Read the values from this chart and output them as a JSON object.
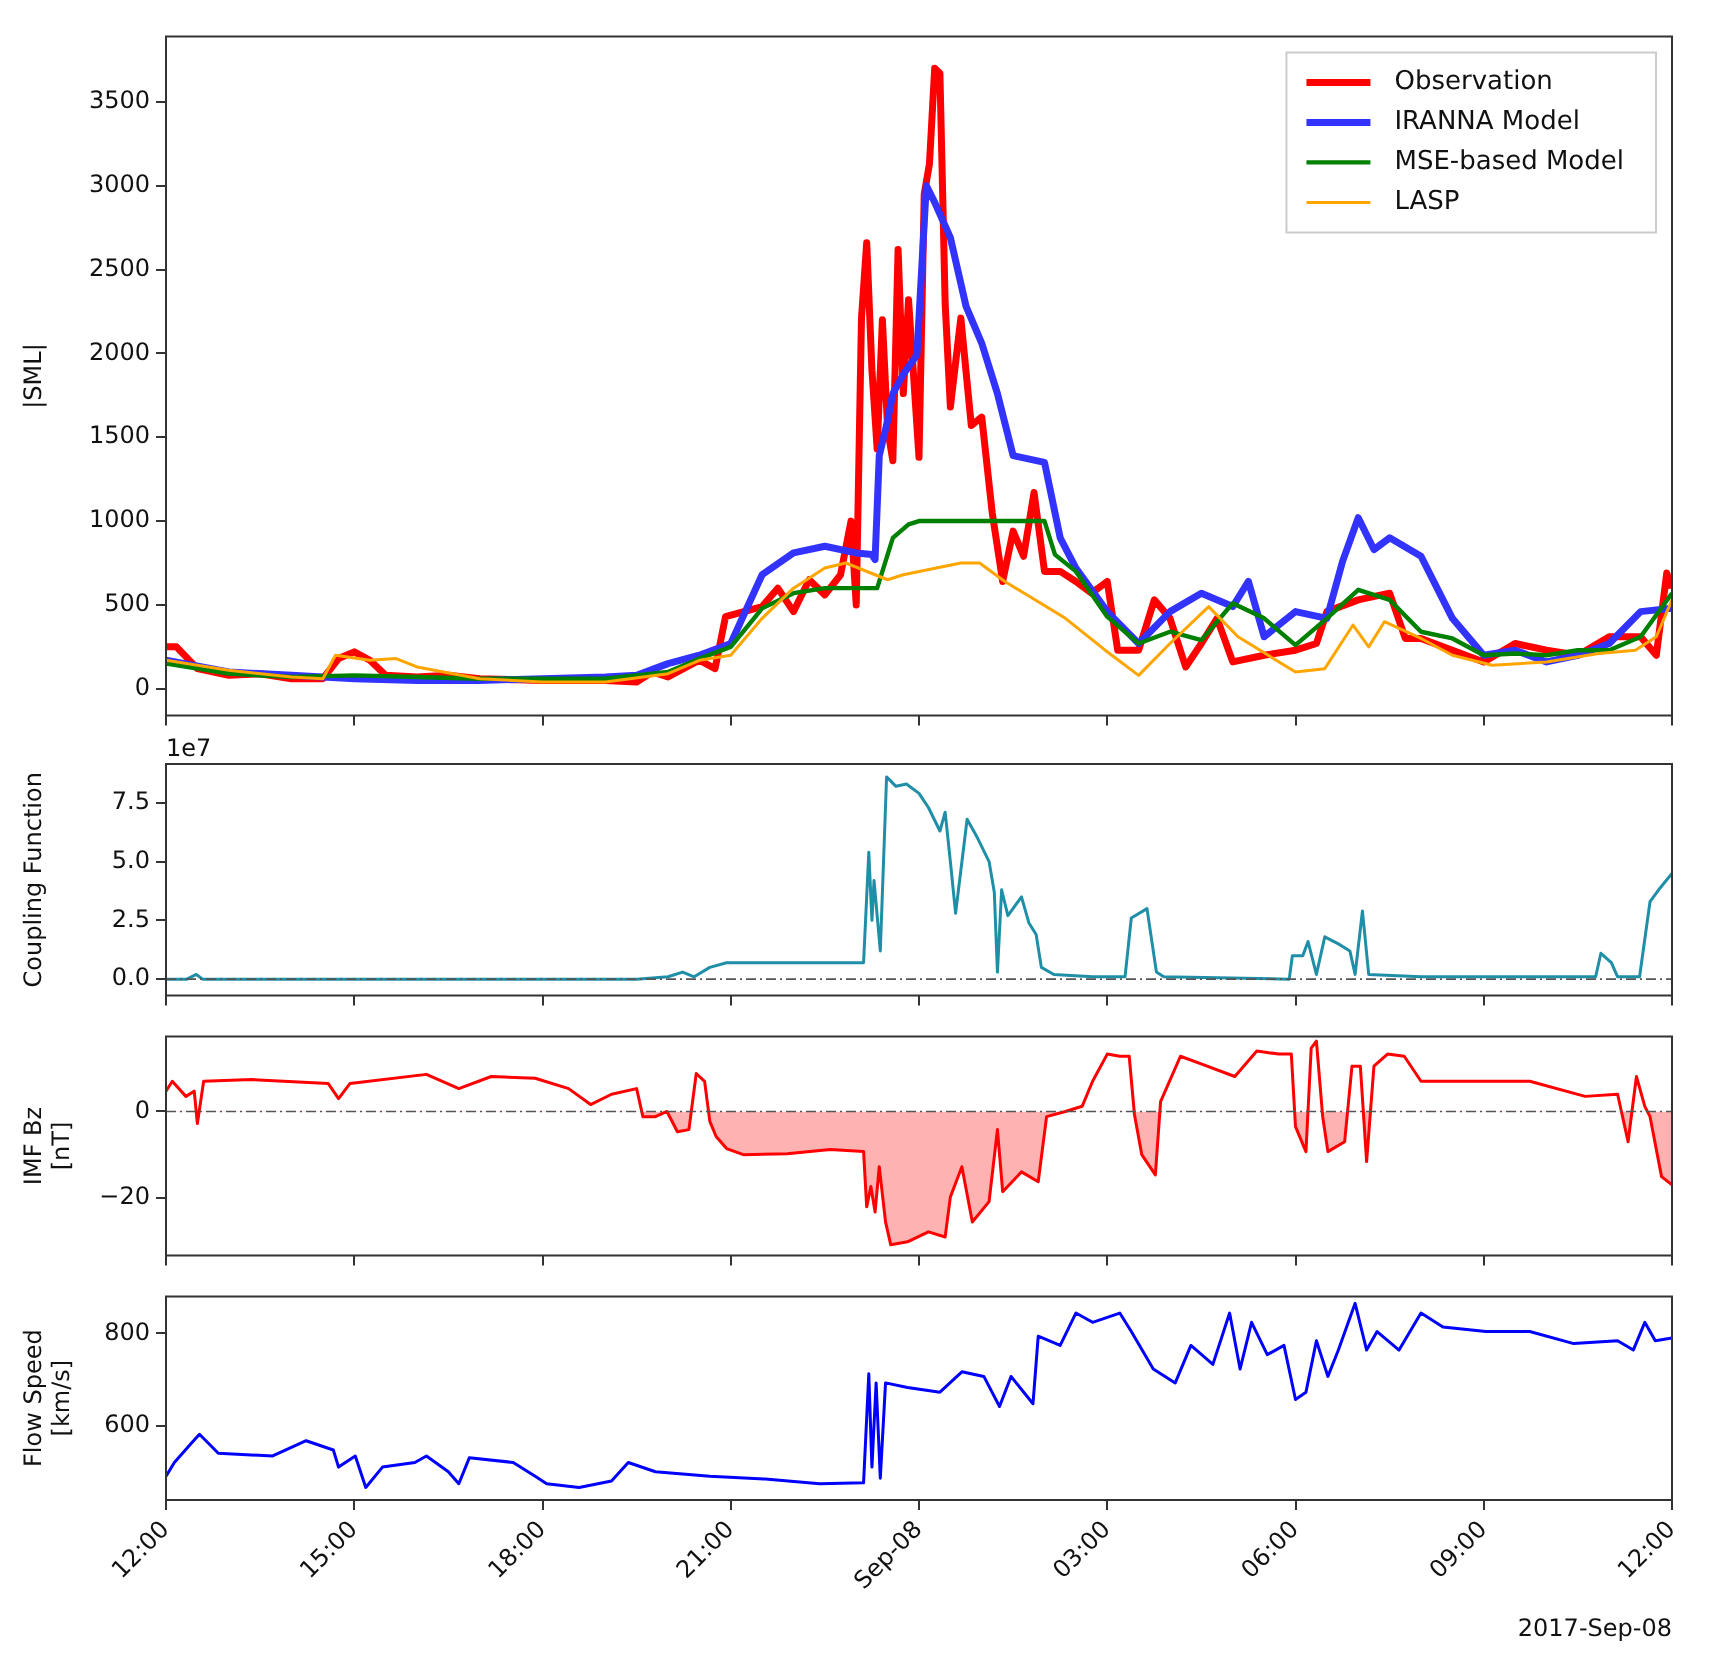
{
  "chart_data": [
    {
      "type": "line",
      "ylabel": "|SML|",
      "legend": "top right",
      "tick_labels": "y",
      "xlim": [
        "2017-09-07T12:00",
        "2017-09-08T12:00"
      ],
      "xticks": [
        {
          "value": "2017-09-07T12:00",
          "label": null
        },
        {
          "value": "2017-09-07T15:00",
          "label": null
        },
        {
          "value": "2017-09-07T18:00",
          "label": null
        },
        {
          "value": "2017-09-07T21:00",
          "label": null
        },
        {
          "value": "2017-09-08T00:00",
          "label": null
        },
        {
          "value": "2017-09-08T03:00",
          "label": null
        },
        {
          "value": "2017-09-08T06:00",
          "label": null
        },
        {
          "value": "2017-09-08T09:00",
          "label": null
        },
        {
          "value": "2017-09-08T12:00",
          "label": null
        }
      ],
      "ylim": [
        -160,
        3890
      ],
      "yticks": [
        0,
        500,
        1000,
        1500,
        2000,
        2500,
        3000,
        3500
      ],
      "series": [
        {
          "name": "Observation",
          "color": "#ff0000",
          "x": [
            "2017-09-07T12:00",
            "2017-09-07T12:10",
            "2017-09-07T12:30",
            "2017-09-07T13:00",
            "2017-09-07T13:30",
            "2017-09-07T14:00",
            "2017-09-07T14:30",
            "2017-09-07T14:45",
            "2017-09-07T15:00",
            "2017-09-07T15:15",
            "2017-09-07T15:30",
            "2017-09-07T16:00",
            "2017-09-07T16:30",
            "2017-09-07T17:00",
            "2017-09-07T18:00",
            "2017-09-07T19:00",
            "2017-09-07T19:30",
            "2017-09-07T19:45",
            "2017-09-07T20:00",
            "2017-09-07T20:30",
            "2017-09-07T20:45",
            "2017-09-07T20:55",
            "2017-09-07T21:30",
            "2017-09-07T21:45",
            "2017-09-07T22:00",
            "2017-09-07T22:15",
            "2017-09-07T22:30",
            "2017-09-07T22:45",
            "2017-09-07T22:55",
            "2017-09-07T23:00",
            "2017-09-07T23:05",
            "2017-09-07T23:10",
            "2017-09-07T23:15",
            "2017-09-07T23:20",
            "2017-09-07T23:25",
            "2017-09-07T23:30",
            "2017-09-07T23:35",
            "2017-09-07T23:40",
            "2017-09-07T23:45",
            "2017-09-07T23:50",
            "2017-09-08T00:00",
            "2017-09-08T00:05",
            "2017-09-08T00:10",
            "2017-09-08T00:15",
            "2017-09-08T00:20",
            "2017-09-08T00:25",
            "2017-09-08T00:30",
            "2017-09-08T00:40",
            "2017-09-08T00:50",
            "2017-09-08T01:00",
            "2017-09-08T01:10",
            "2017-09-08T01:20",
            "2017-09-08T01:30",
            "2017-09-08T01:40",
            "2017-09-08T01:50",
            "2017-09-08T02:00",
            "2017-09-08T02:15",
            "2017-09-08T02:30",
            "2017-09-08T02:45",
            "2017-09-08T03:00",
            "2017-09-08T03:10",
            "2017-09-08T03:30",
            "2017-09-08T03:45",
            "2017-09-08T04:00",
            "2017-09-08T04:15",
            "2017-09-08T04:30",
            "2017-09-08T04:45",
            "2017-09-08T05:00",
            "2017-09-08T05:30",
            "2017-09-08T06:00",
            "2017-09-08T06:20",
            "2017-09-08T06:30",
            "2017-09-08T07:00",
            "2017-09-08T07:30",
            "2017-09-08T07:45",
            "2017-09-08T08:00",
            "2017-09-08T08:30",
            "2017-09-08T09:00",
            "2017-09-08T09:30",
            "2017-09-08T10:00",
            "2017-09-08T10:30",
            "2017-09-08T11:00",
            "2017-09-08T11:30",
            "2017-09-08T11:45",
            "2017-09-08T11:55",
            "2017-09-08T12:00"
          ],
          "values": [
            250,
            250,
            120,
            80,
            90,
            60,
            60,
            180,
            220,
            170,
            80,
            70,
            80,
            60,
            50,
            50,
            40,
            100,
            70,
            170,
            120,
            430,
            490,
            600,
            460,
            650,
            560,
            680,
            1000,
            500,
            2210,
            2660,
            1900,
            1430,
            2200,
            1550,
            1360,
            2620,
            1760,
            2320,
            1380,
            2950,
            3130,
            3700,
            3670,
            2300,
            1680,
            2210,
            1570,
            1620,
            1050,
            640,
            940,
            790,
            1170,
            700,
            700,
            640,
            570,
            640,
            230,
            230,
            530,
            420,
            130,
            270,
            420,
            160,
            200,
            230,
            270,
            460,
            530,
            570,
            300,
            300,
            230,
            160,
            270,
            230,
            200,
            310,
            310,
            200,
            690,
            600
          ]
        },
        {
          "name": "IRANNA Model",
          "color": "#3333ff",
          "x": [
            "2017-09-07T12:00",
            "2017-09-07T13:00",
            "2017-09-07T14:00",
            "2017-09-07T15:00",
            "2017-09-07T16:00",
            "2017-09-07T17:00",
            "2017-09-07T18:00",
            "2017-09-07T19:00",
            "2017-09-07T19:30",
            "2017-09-07T20:00",
            "2017-09-07T20:30",
            "2017-09-07T21:00",
            "2017-09-07T21:30",
            "2017-09-07T22:00",
            "2017-09-07T22:30",
            "2017-09-07T23:00",
            "2017-09-07T23:15",
            "2017-09-07T23:18",
            "2017-09-07T23:22",
            "2017-09-07T23:30",
            "2017-09-07T23:35",
            "2017-09-07T23:45",
            "2017-09-07T23:58",
            "2017-09-08T00:07",
            "2017-09-08T00:15",
            "2017-09-08T00:30",
            "2017-09-08T00:45",
            "2017-09-08T01:00",
            "2017-09-08T01:15",
            "2017-09-08T01:30",
            "2017-09-08T02:00",
            "2017-09-08T02:15",
            "2017-09-08T02:30",
            "2017-09-08T03:00",
            "2017-09-08T03:30",
            "2017-09-08T04:00",
            "2017-09-08T04:30",
            "2017-09-08T05:00",
            "2017-09-08T05:15",
            "2017-09-08T05:30",
            "2017-09-08T06:00",
            "2017-09-08T06:30",
            "2017-09-08T06:45",
            "2017-09-08T07:00",
            "2017-09-08T07:15",
            "2017-09-08T07:30",
            "2017-09-08T08:00",
            "2017-09-08T08:30",
            "2017-09-08T09:00",
            "2017-09-08T09:30",
            "2017-09-08T10:00",
            "2017-09-08T10:30",
            "2017-09-08T11:00",
            "2017-09-08T11:30",
            "2017-09-08T12:00"
          ],
          "values": [
            170,
            100,
            80,
            60,
            50,
            50,
            60,
            70,
            80,
            150,
            200,
            270,
            680,
            810,
            850,
            810,
            800,
            770,
            1390,
            1600,
            1760,
            1875,
            1990,
            3000,
            2900,
            2690,
            2280,
            2060,
            1760,
            1390,
            1350,
            900,
            720,
            460,
            270,
            460,
            570,
            490,
            640,
            310,
            460,
            420,
            760,
            1020,
            830,
            900,
            790,
            420,
            200,
            230,
            160,
            200,
            270,
            460,
            480
          ]
        },
        {
          "name": "MSE-based Model",
          "color": "#008000",
          "x": [
            "2017-09-07T12:00",
            "2017-09-07T13:00",
            "2017-09-07T14:00",
            "2017-09-07T15:00",
            "2017-09-07T16:00",
            "2017-09-07T17:00",
            "2017-09-07T18:00",
            "2017-09-07T19:00",
            "2017-09-07T20:00",
            "2017-09-07T20:30",
            "2017-09-07T21:00",
            "2017-09-07T21:30",
            "2017-09-07T22:00",
            "2017-09-07T22:30",
            "2017-09-07T23:20",
            "2017-09-07T23:35",
            "2017-09-07T23:50",
            "2017-09-08T00:00",
            "2017-09-08T02:00",
            "2017-09-08T02:10",
            "2017-09-08T02:30",
            "2017-09-08T03:00",
            "2017-09-08T03:30",
            "2017-09-08T04:00",
            "2017-09-08T04:30",
            "2017-09-08T05:00",
            "2017-09-08T05:30",
            "2017-09-08T06:00",
            "2017-09-08T06:30",
            "2017-09-08T07:00",
            "2017-09-08T07:30",
            "2017-09-08T08:00",
            "2017-09-08T08:30",
            "2017-09-08T09:00",
            "2017-09-08T09:30",
            "2017-09-08T10:00",
            "2017-09-08T10:30",
            "2017-09-08T11:00",
            "2017-09-08T11:30",
            "2017-09-08T12:00"
          ],
          "values": [
            150,
            90,
            70,
            80,
            70,
            60,
            60,
            60,
            100,
            180,
            250,
            480,
            570,
            600,
            600,
            900,
            980,
            1000,
            1000,
            800,
            700,
            430,
            270,
            340,
            290,
            510,
            420,
            260,
            420,
            590,
            530,
            340,
            300,
            200,
            210,
            200,
            230,
            230,
            310,
            570
          ]
        },
        {
          "name": "LASP",
          "color": "#ffa500",
          "x": [
            "2017-09-07T12:00",
            "2017-09-07T13:00",
            "2017-09-07T14:00",
            "2017-09-07T14:30",
            "2017-09-07T14:42",
            "2017-09-07T15:15",
            "2017-09-07T15:40",
            "2017-09-07T16:00",
            "2017-09-07T17:00",
            "2017-09-07T18:00",
            "2017-09-07T19:00",
            "2017-09-07T20:00",
            "2017-09-07T20:30",
            "2017-09-07T21:00",
            "2017-09-07T21:30",
            "2017-09-07T22:00",
            "2017-09-07T22:30",
            "2017-09-07T22:50",
            "2017-09-07T23:30",
            "2017-09-07T23:45",
            "2017-09-08T00:40",
            "2017-09-08T00:58",
            "2017-09-08T01:22",
            "2017-09-08T02:20",
            "2017-09-08T02:58",
            "2017-09-08T03:30",
            "2017-09-08T04:00",
            "2017-09-08T04:37",
            "2017-09-08T05:05",
            "2017-09-08T06:00",
            "2017-09-08T06:28",
            "2017-09-08T06:55",
            "2017-09-08T07:10",
            "2017-09-08T07:25",
            "2017-09-08T08:00",
            "2017-09-08T08:30",
            "2017-09-08T09:08",
            "2017-09-08T10:00",
            "2017-09-08T10:50",
            "2017-09-08T11:25",
            "2017-09-08T11:45",
            "2017-09-08T12:00"
          ],
          "values": [
            170,
            110,
            70,
            60,
            200,
            170,
            180,
            130,
            60,
            40,
            40,
            90,
            170,
            200,
            420,
            600,
            720,
            750,
            650,
            680,
            750,
            750,
            640,
            420,
            230,
            80,
            270,
            490,
            310,
            100,
            120,
            380,
            250,
            400,
            300,
            200,
            140,
            160,
            210,
            230,
            310,
            530
          ]
        }
      ]
    },
    {
      "type": "line",
      "ylabel": "Coupling Function",
      "tick_labels": "y",
      "annotations": [
        "1e7"
      ],
      "xlim": [
        "2017-09-07T12:00",
        "2017-09-08T12:00"
      ],
      "xticks": [
        {
          "value": "2017-09-07T12:00",
          "label": null
        },
        {
          "value": "2017-09-07T15:00",
          "label": null
        },
        {
          "value": "2017-09-07T18:00",
          "label": null
        },
        {
          "value": "2017-09-07T21:00",
          "label": null
        },
        {
          "value": "2017-09-08T00:00",
          "label": null
        },
        {
          "value": "2017-09-08T03:00",
          "label": null
        },
        {
          "value": "2017-09-08T06:00",
          "label": null
        },
        {
          "value": "2017-09-08T09:00",
          "label": null
        },
        {
          "value": "2017-09-08T12:00",
          "label": null
        }
      ],
      "ylim": [
        -0.7,
        9.15
      ],
      "yticks": [
        {
          "value": 0,
          "label": "0.0"
        },
        {
          "value": 2.5,
          "label": "2.5"
        },
        {
          "value": 5,
          "label": "5.0"
        },
        {
          "value": 7.5,
          "label": "7.5"
        }
      ],
      "ref_lines": [
        {
          "axis": "y",
          "value": 0,
          "color": "#555555",
          "line_style": "dashed"
        }
      ],
      "x": [
        "2017-09-07T12:00",
        "2017-09-07T12:20",
        "2017-09-07T12:29",
        "2017-09-07T12:35",
        "2017-09-07T19:30",
        "2017-09-07T20:00",
        "2017-09-07T20:14",
        "2017-09-07T20:25",
        "2017-09-07T20:40",
        "2017-09-07T20:56",
        "2017-09-07T21:56",
        "2017-09-07T23:07",
        "2017-09-07T23:12",
        "2017-09-07T23:15",
        "2017-09-07T23:17",
        "2017-09-07T23:23",
        "2017-09-07T23:29",
        "2017-09-07T23:38",
        "2017-09-07T23:48",
        "2017-09-08T00:00",
        "2017-09-08T00:09",
        "2017-09-08T00:20",
        "2017-09-08T00:25",
        "2017-09-08T00:30",
        "2017-09-08T00:35",
        "2017-09-08T00:46",
        "2017-09-08T00:56",
        "2017-09-08T01:07",
        "2017-09-08T01:12",
        "2017-09-08T01:15",
        "2017-09-08T01:19",
        "2017-09-08T01:25",
        "2017-09-08T01:38",
        "2017-09-08T01:45",
        "2017-09-08T01:52",
        "2017-09-08T01:57",
        "2017-09-08T02:09",
        "2017-09-08T02:46",
        "2017-09-08T03:17",
        "2017-09-08T03:23",
        "2017-09-08T03:38",
        "2017-09-08T03:47",
        "2017-09-08T03:54",
        "2017-09-08T05:54",
        "2017-09-08T05:57",
        "2017-09-08T06:07",
        "2017-09-08T06:12",
        "2017-09-08T06:20",
        "2017-09-08T06:28",
        "2017-09-08T06:41",
        "2017-09-08T06:52",
        "2017-09-08T06:57",
        "2017-09-08T07:04",
        "2017-09-08T07:10",
        "2017-09-08T08:00",
        "2017-09-08T10:47",
        "2017-09-08T10:52",
        "2017-09-08T11:02",
        "2017-09-08T11:08",
        "2017-09-08T11:29",
        "2017-09-08T11:39",
        "2017-09-08T11:49",
        "2017-09-08T12:00"
      ],
      "series": [
        {
          "color": "#1f8fa8",
          "values": [
            0,
            0,
            0.2,
            0,
            0,
            0.1,
            0.3,
            0.1,
            0.5,
            0.7,
            0.7,
            0.7,
            5.4,
            2.5,
            4.2,
            1.2,
            8.6,
            8.2,
            8.3,
            7.9,
            7.3,
            6.3,
            7.1,
            5.0,
            2.8,
            6.8,
            6.0,
            5.0,
            3.7,
            0.3,
            3.8,
            2.7,
            3.5,
            2.4,
            1.9,
            0.5,
            0.2,
            0.1,
            0.1,
            2.6,
            3.0,
            0.3,
            0.1,
            0,
            1.0,
            1.0,
            1.6,
            0.2,
            1.8,
            1.5,
            1.2,
            0.2,
            2.9,
            0.2,
            0.1,
            0.1,
            1.1,
            0.7,
            0.1,
            0.1,
            3.3,
            3.9,
            4.5
          ]
        }
      ]
    },
    {
      "type": "area",
      "ylabel": "IMF Bz\n[nT]",
      "tick_labels": "y",
      "xlim": [
        "2017-09-07T12:00",
        "2017-09-08T12:00"
      ],
      "xticks": [
        {
          "value": "2017-09-07T12:00",
          "label": null
        },
        {
          "value": "2017-09-07T15:00",
          "label": null
        },
        {
          "value": "2017-09-07T18:00",
          "label": null
        },
        {
          "value": "2017-09-07T21:00",
          "label": null
        },
        {
          "value": "2017-09-08T00:00",
          "label": null
        },
        {
          "value": "2017-09-08T03:00",
          "label": null
        },
        {
          "value": "2017-09-08T06:00",
          "label": null
        },
        {
          "value": "2017-09-08T09:00",
          "label": null
        },
        {
          "value": "2017-09-08T12:00",
          "label": null
        }
      ],
      "ylim": [
        -33.4,
        17.4
      ],
      "yticks": [
        {
          "value": -20,
          "label": "−20"
        },
        0
      ],
      "ref_lines": [
        {
          "axis": "y",
          "value": 0,
          "color": "#555555",
          "line_style": "dashed"
        }
      ],
      "x": [
        "2017-09-07T12:00",
        "2017-09-07T12:06",
        "2017-09-07T12:19",
        "2017-09-07T12:27",
        "2017-09-07T12:30",
        "2017-09-07T12:36",
        "2017-09-07T13:22",
        "2017-09-07T14:35",
        "2017-09-07T14:45",
        "2017-09-07T14:56",
        "2017-09-07T16:09",
        "2017-09-07T16:40",
        "2017-09-07T17:11",
        "2017-09-07T17:53",
        "2017-09-07T18:25",
        "2017-09-07T18:46",
        "2017-09-07T19:06",
        "2017-09-07T19:30",
        "2017-09-07T19:36",
        "2017-09-07T19:48",
        "2017-09-07T19:59",
        "2017-09-07T20:09",
        "2017-09-07T20:20",
        "2017-09-07T20:27",
        "2017-09-07T20:35",
        "2017-09-07T20:40",
        "2017-09-07T20:46",
        "2017-09-07T20:56",
        "2017-09-07T21:12",
        "2017-09-07T21:54",
        "2017-09-07T22:35",
        "2017-09-07T23:07",
        "2017-09-07T23:10",
        "2017-09-07T23:14",
        "2017-09-07T23:18",
        "2017-09-07T23:22",
        "2017-09-07T23:28",
        "2017-09-07T23:33",
        "2017-09-07T23:49",
        "2017-09-08T00:09",
        "2017-09-08T00:25",
        "2017-09-08T00:30",
        "2017-09-08T00:41",
        "2017-09-08T00:51",
        "2017-09-08T01:07",
        "2017-09-08T01:15",
        "2017-09-08T01:20",
        "2017-09-08T01:38",
        "2017-09-08T01:54",
        "2017-09-08T02:02",
        "2017-09-08T02:20",
        "2017-09-08T02:36",
        "2017-09-08T02:46",
        "2017-09-08T03:00",
        "2017-09-08T03:12",
        "2017-09-08T03:21",
        "2017-09-08T03:26",
        "2017-09-08T03:33",
        "2017-09-08T03:46",
        "2017-09-08T03:51",
        "2017-09-08T04:10",
        "2017-09-08T04:31",
        "2017-09-08T05:02",
        "2017-09-08T05:23",
        "2017-09-08T05:44",
        "2017-09-08T05:56",
        "2017-09-08T06:00",
        "2017-09-08T06:10",
        "2017-09-08T06:15",
        "2017-09-08T06:20",
        "2017-09-08T06:26",
        "2017-09-08T06:31",
        "2017-09-08T06:47",
        "2017-09-08T06:54",
        "2017-09-08T07:02",
        "2017-09-08T07:08",
        "2017-09-08T07:15",
        "2017-09-08T07:28",
        "2017-09-08T07:44",
        "2017-09-08T08:00",
        "2017-09-08T08:52",
        "2017-09-08T09:44",
        "2017-09-08T10:37",
        "2017-09-08T11:08",
        "2017-09-08T11:18",
        "2017-09-08T11:26",
        "2017-09-08T11:34",
        "2017-09-08T11:39",
        "2017-09-08T11:50",
        "2017-09-08T12:00"
      ],
      "series": [
        {
          "color": "#ff0000",
          "values": [
            4.7,
            7.0,
            3.5,
            4.7,
            -2.8,
            7.0,
            7.4,
            6.5,
            3.0,
            6.5,
            8.6,
            5.3,
            8.1,
            7.7,
            5.3,
            1.6,
            4.0,
            5.3,
            -1.2,
            -1.2,
            0,
            -4.7,
            -4.2,
            8.8,
            7.0,
            -2.3,
            -5.8,
            -8.6,
            -10.0,
            -9.8,
            -8.8,
            -9.3,
            -22.1,
            -17.4,
            -23.3,
            -12.8,
            -25.6,
            -30.9,
            -30.2,
            -27.9,
            -29.1,
            -19.8,
            -12.8,
            -25.6,
            -20.9,
            -4.2,
            -18.6,
            -14.0,
            -16.3,
            -1.2,
            0,
            1.2,
            7.0,
            13.3,
            12.8,
            12.8,
            -0.7,
            -10.0,
            -14.7,
            2.3,
            12.8,
            10.9,
            8.1,
            14.0,
            13.3,
            13.3,
            -3.5,
            -9.3,
            14.7,
            16.3,
            -1.2,
            -9.3,
            -7.0,
            10.5,
            10.5,
            -11.6,
            10.5,
            13.3,
            12.8,
            7.0,
            7.0,
            7.0,
            3.5,
            4.0,
            -7.0,
            8.1,
            1.2,
            -1.2,
            -15.1,
            -17.0
          ]
        }
      ]
    },
    {
      "type": "line",
      "ylabel": "Flow Speed\n[km/s]",
      "annotations": [
        "2017-Sep-08"
      ],
      "xlim": [
        "2017-09-07T12:00",
        "2017-09-08T12:00"
      ],
      "xticks": [
        {
          "value": "2017-09-07T12:00",
          "label": "12:00"
        },
        {
          "value": "2017-09-07T15:00",
          "label": "15:00"
        },
        {
          "value": "2017-09-07T18:00",
          "label": "18:00"
        },
        {
          "value": "2017-09-07T21:00",
          "label": "21:00"
        },
        {
          "value": "2017-09-08T00:00",
          "label": "Sep-08"
        },
        {
          "value": "2017-09-08T03:00",
          "label": "03:00"
        },
        {
          "value": "2017-09-08T06:00",
          "label": "06:00"
        },
        {
          "value": "2017-09-08T09:00",
          "label": "09:00"
        },
        {
          "value": "2017-09-08T12:00",
          "label": "12:00"
        }
      ],
      "ylim": [
        440,
        880
      ],
      "yticks": [
        600,
        800
      ],
      "x": [
        "2017-09-07T12:00",
        "2017-09-07T12:08",
        "2017-09-07T12:24",
        "2017-09-07T12:32",
        "2017-09-07T12:50",
        "2017-09-07T13:42",
        "2017-09-07T14:14",
        "2017-09-07T14:40",
        "2017-09-07T14:45",
        "2017-09-07T15:01",
        "2017-09-07T15:11",
        "2017-09-07T15:27",
        "2017-09-07T15:58",
        "2017-09-07T16:09",
        "2017-09-07T16:30",
        "2017-09-07T16:40",
        "2017-09-07T16:50",
        "2017-09-07T17:32",
        "2017-09-07T17:53",
        "2017-09-07T18:04",
        "2017-09-07T18:35",
        "2017-09-07T19:06",
        "2017-09-07T19:22",
        "2017-09-07T19:48",
        "2017-09-07T20:40",
        "2017-09-07T21:33",
        "2017-09-07T22:25",
        "2017-09-07T23:07",
        "2017-09-07T23:12",
        "2017-09-07T23:15",
        "2017-09-07T23:19",
        "2017-09-07T23:23",
        "2017-09-07T23:28",
        "2017-09-07T23:49",
        "2017-09-08T00:20",
        "2017-09-08T00:41",
        "2017-09-08T01:02",
        "2017-09-08T01:17",
        "2017-09-08T01:28",
        "2017-09-08T01:49",
        "2017-09-08T01:54",
        "2017-09-08T02:15",
        "2017-09-08T02:30",
        "2017-09-08T02:46",
        "2017-09-08T03:12",
        "2017-09-08T03:23",
        "2017-09-08T03:44",
        "2017-09-08T04:05",
        "2017-09-08T04:20",
        "2017-09-08T04:41",
        "2017-09-08T04:57",
        "2017-09-08T05:07",
        "2017-09-08T05:18",
        "2017-09-08T05:33",
        "2017-09-08T05:49",
        "2017-09-08T06:00",
        "2017-09-08T06:10",
        "2017-09-08T06:20",
        "2017-09-08T06:31",
        "2017-09-08T06:41",
        "2017-09-08T06:57",
        "2017-09-08T07:08",
        "2017-09-08T07:18",
        "2017-09-08T07:39",
        "2017-09-08T08:00",
        "2017-09-08T08:21",
        "2017-09-08T09:02",
        "2017-09-08T09:44",
        "2017-09-08T10:26",
        "2017-09-08T11:08",
        "2017-09-08T11:23",
        "2017-09-08T11:34",
        "2017-09-08T11:44",
        "2017-09-08T12:00"
      ],
      "series": [
        {
          "color": "#0000ff",
          "values": [
            491,
            521,
            562,
            582,
            541,
            535,
            568,
            548,
            511,
            535,
            467,
            511,
            521,
            535,
            501,
            475,
            531,
            521,
            491,
            475,
            467,
            481,
            521,
            501,
            491,
            485,
            475,
            477,
            713,
            511,
            693,
            487,
            693,
            683,
            673,
            717,
            707,
            642,
            707,
            648,
            794,
            774,
            844,
            824,
            844,
            804,
            723,
            693,
            774,
            733,
            844,
            723,
            824,
            754,
            774,
            657,
            673,
            784,
            707,
            764,
            865,
            764,
            804,
            764,
            844,
            814,
            804,
            804,
            778,
            784,
            764,
            824,
            784,
            790
          ]
        }
      ]
    }
  ]
}
